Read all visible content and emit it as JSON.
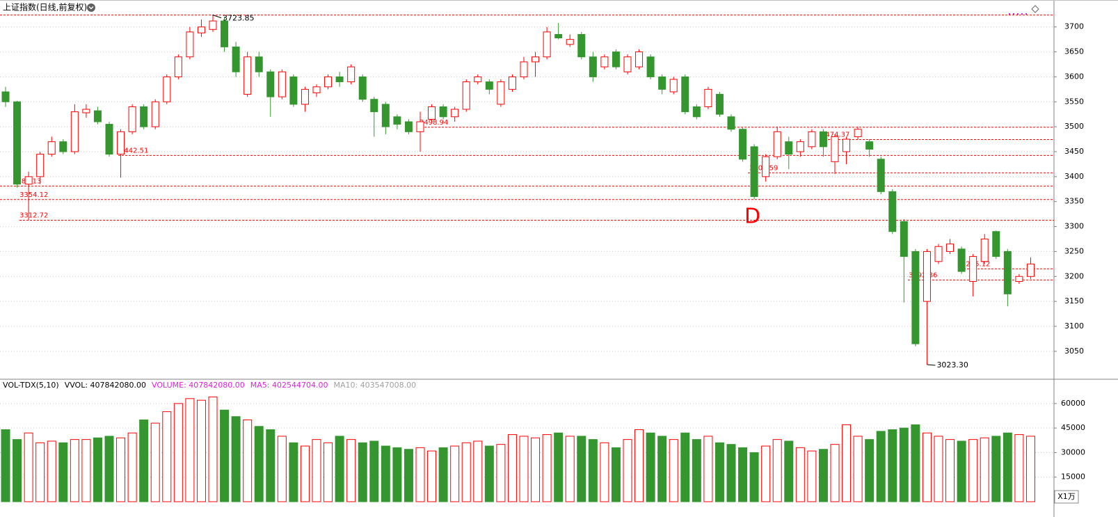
{
  "chart_data": [
    {
      "type": "candlestick",
      "title": "上证指数(日线,前复权)",
      "up_color": "#ff0000",
      "down_color": "#35962f",
      "open": [
        3570,
        3550,
        3385,
        3400,
        3445,
        3470,
        3450,
        3528,
        3532,
        3505,
        3445,
        3490,
        3540,
        3500,
        3550,
        3600,
        3640,
        3688,
        3695,
        3712,
        3660,
        3565,
        3640,
        3610,
        3560,
        3600,
        3545,
        3568,
        3580,
        3600,
        3590,
        3600,
        3555,
        3545,
        3520,
        3510,
        3490,
        3515,
        3540,
        3520,
        3535,
        3590,
        3590,
        3545,
        3575,
        3600,
        3630,
        3640,
        3685,
        3665,
        3685,
        3640,
        3620,
        3650,
        3610,
        3620,
        3640,
        3600,
        3570,
        3600,
        3540,
        3540,
        3565,
        3520,
        3495,
        3460,
        3400,
        3440,
        3470,
        3450,
        3460,
        3490,
        3430,
        3450,
        3480,
        3470,
        3435,
        3370,
        3310,
        3250,
        3150,
        3230,
        3250,
        3255,
        3190,
        3230,
        3290,
        3250,
        3190,
        3200
      ],
      "high": [
        3580,
        3552,
        3410,
        3450,
        3480,
        3475,
        3545,
        3545,
        3540,
        3510,
        3495,
        3545,
        3545,
        3555,
        3605,
        3645,
        3700,
        3715,
        3723.85,
        3720,
        3670,
        3650,
        3650,
        3615,
        3615,
        3605,
        3580,
        3585,
        3605,
        3610,
        3625,
        3605,
        3560,
        3550,
        3525,
        3515,
        3530,
        3545,
        3545,
        3540,
        3595,
        3605,
        3595,
        3595,
        3605,
        3640,
        3650,
        3700,
        3708,
        3685,
        3690,
        3650,
        3645,
        3655,
        3645,
        3655,
        3645,
        3605,
        3600,
        3605,
        3545,
        3580,
        3570,
        3525,
        3500,
        3465,
        3445,
        3500,
        3480,
        3475,
        3495,
        3495,
        3485,
        3480,
        3500,
        3475,
        3440,
        3375,
        3315,
        3255,
        3255,
        3265,
        3275,
        3260,
        3245,
        3285,
        3292,
        3255,
        3205,
        3238
      ],
      "low": [
        3540,
        3378,
        3312.72,
        3385,
        3440,
        3445,
        3445,
        3518,
        3505,
        3440,
        3398,
        3485,
        3495,
        3495,
        3545,
        3595,
        3635,
        3680,
        3690,
        3650,
        3600,
        3560,
        3600,
        3520,
        3555,
        3540,
        3530,
        3560,
        3575,
        3580,
        3585,
        3550,
        3480,
        3485,
        3495,
        3485,
        3450,
        3510,
        3515,
        3510,
        3530,
        3585,
        3565,
        3540,
        3570,
        3595,
        3600,
        3635,
        3675,
        3660,
        3635,
        3590,
        3615,
        3615,
        3605,
        3615,
        3595,
        3565,
        3565,
        3525,
        3515,
        3535,
        3520,
        3490,
        3430,
        3355,
        3390,
        3435,
        3415,
        3440,
        3455,
        3440,
        3405,
        3425,
        3475,
        3440,
        3365,
        3285,
        3148,
        3060,
        3023.3,
        3225,
        3245,
        3205,
        3160,
        3225,
        3235,
        3140,
        3185,
        3195
      ],
      "close": [
        3550,
        3385,
        3400,
        3445,
        3470,
        3450,
        3530,
        3535,
        3510,
        3445,
        3490,
        3540,
        3500,
        3550,
        3600,
        3640,
        3690,
        3700,
        3712,
        3660,
        3610,
        3640,
        3610,
        3560,
        3610,
        3545,
        3575,
        3580,
        3600,
        3590,
        3620,
        3555,
        3530,
        3500,
        3505,
        3490,
        3510,
        3540,
        3520,
        3535,
        3590,
        3600,
        3575,
        3590,
        3600,
        3630,
        3640,
        3690,
        3678,
        3675,
        3640,
        3600,
        3640,
        3620,
        3640,
        3650,
        3600,
        3575,
        3595,
        3530,
        3520,
        3575,
        3525,
        3495,
        3435,
        3360,
        3440,
        3490,
        3445,
        3470,
        3490,
        3460,
        3480,
        3475,
        3495,
        3455,
        3370,
        3290,
        3240,
        3065,
        3250,
        3260,
        3265,
        3210,
        3240,
        3275,
        3240,
        3165,
        3200,
        3225
      ],
      "ylim": [
        2994,
        3754
      ],
      "yticks": [
        3050,
        3100,
        3150,
        3200,
        3250,
        3300,
        3350,
        3400,
        3450,
        3500,
        3550,
        3600,
        3650,
        3700
      ],
      "levels": [
        3723.85,
        3498.94,
        3474.37,
        3442.51,
        3407.59,
        3381.13,
        3354.12,
        3312.72,
        3215.12,
        3192.86
      ],
      "low_label": {
        "value": 3023.3,
        "label": "3023.30"
      },
      "annotation": "D"
    },
    {
      "type": "volume",
      "header": [
        "VOL-TDX(5,10)",
        "VVOL: 407842080.00",
        "VOLUME: 407842080.00",
        "MA5: 402544704.00",
        "MA10: 403547008.00"
      ],
      "header_colors": [
        "#000000",
        "#000000",
        "#e020e0",
        "#e020e0",
        "#a0a0a0"
      ],
      "unit": "X1万",
      "values": [
        44000,
        38000,
        42000,
        36000,
        37000,
        36000,
        38000,
        38000,
        39000,
        40000,
        39000,
        42000,
        50000,
        48000,
        55000,
        60000,
        63000,
        62000,
        64000,
        56000,
        52000,
        50000,
        46000,
        44000,
        40000,
        36000,
        34000,
        38000,
        36000,
        40000,
        38000,
        36000,
        37000,
        34000,
        33000,
        32000,
        33000,
        31000,
        33000,
        34000,
        36000,
        37000,
        34000,
        35000,
        41000,
        40000,
        39000,
        41000,
        42000,
        40000,
        40000,
        38000,
        36000,
        33000,
        38000,
        44000,
        42000,
        40000,
        38000,
        42000,
        38000,
        40000,
        36000,
        35000,
        33000,
        30000,
        34000,
        38000,
        37000,
        33000,
        31000,
        32000,
        35000,
        47000,
        40000,
        38000,
        43000,
        44000,
        45000,
        47000,
        42000,
        40000,
        38000,
        37000,
        38000,
        39000,
        40000,
        42000,
        41000,
        40000
      ],
      "ylim": [
        0,
        67600
      ],
      "yticks": [
        15000,
        30000,
        45000,
        60000
      ]
    }
  ]
}
